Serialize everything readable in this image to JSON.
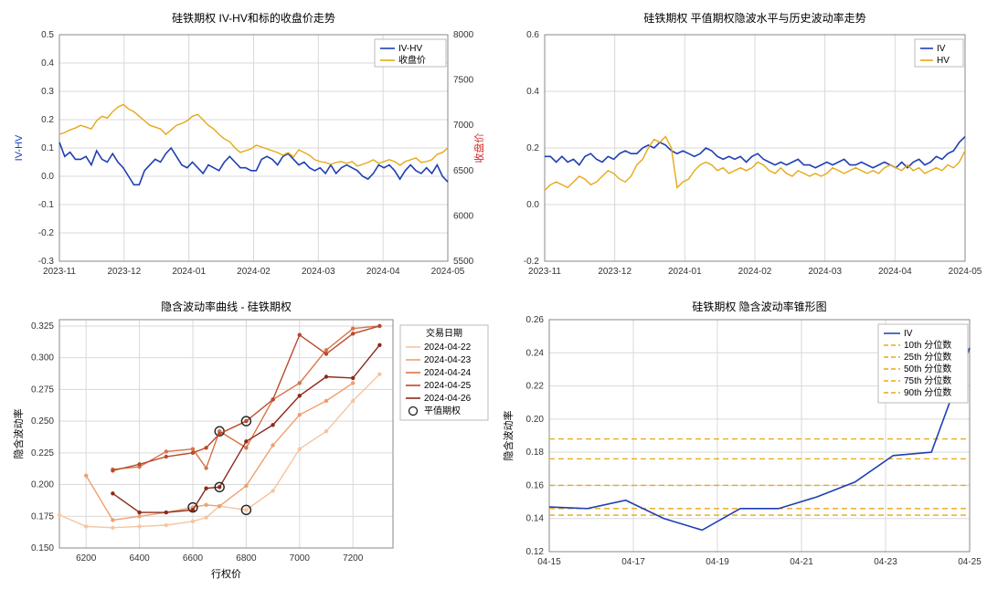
{
  "background_color": "#ffffff",
  "fonts": {
    "title_size": 12,
    "tick_size": 10,
    "legend_size": 10
  },
  "chart_a": {
    "type": "line",
    "title": "硅铁期权 IV-HV和标的收盘价走势",
    "ylabel_left": "IV-HV",
    "ylabel_right": "收盘价",
    "ylabel_left_color": "#1f3fb3",
    "ylabel_right_color": "#d62728",
    "x_ticks": [
      "2023-11",
      "2023-12",
      "2024-01",
      "2024-02",
      "2024-03",
      "2024-04",
      "2024-05"
    ],
    "y_left": {
      "min": -0.3,
      "max": 0.5,
      "step": 0.1
    },
    "y_right": {
      "min": 5500,
      "max": 8000,
      "step": 500,
      "color": "#d62728"
    },
    "grid_color": "#d9d9d9",
    "legend": [
      {
        "label": "IV-HV",
        "color": "#1f3fb3"
      },
      {
        "label": "收盘价",
        "color": "#e6a817"
      }
    ],
    "series": [
      {
        "name": "IV-HV",
        "color": "#1f3fb3",
        "width": 1.6,
        "axis": "left",
        "y": [
          0.12,
          0.07,
          0.085,
          0.06,
          0.06,
          0.07,
          0.04,
          0.09,
          0.06,
          0.05,
          0.08,
          0.05,
          0.03,
          0.0,
          -0.03,
          -0.03,
          0.02,
          0.04,
          0.06,
          0.05,
          0.08,
          0.1,
          0.07,
          0.04,
          0.03,
          0.05,
          0.03,
          0.01,
          0.04,
          0.03,
          0.02,
          0.05,
          0.07,
          0.05,
          0.03,
          0.03,
          0.02,
          0.02,
          0.06,
          0.07,
          0.06,
          0.04,
          0.07,
          0.08,
          0.06,
          0.04,
          0.05,
          0.03,
          0.02,
          0.03,
          0.01,
          0.04,
          0.01,
          0.03,
          0.04,
          0.03,
          0.02,
          0.0,
          -0.01,
          0.01,
          0.04,
          0.03,
          0.04,
          0.02,
          -0.01,
          0.02,
          0.04,
          0.02,
          0.01,
          0.03,
          0.01,
          0.04,
          0.0,
          -0.02
        ]
      },
      {
        "name": "收盘价",
        "color": "#e6a817",
        "width": 1.4,
        "axis": "right",
        "y": [
          6900,
          6920,
          6950,
          6970,
          7000,
          6980,
          6960,
          7050,
          7100,
          7080,
          7150,
          7200,
          7230,
          7180,
          7150,
          7100,
          7050,
          7000,
          6980,
          6960,
          6900,
          6950,
          7000,
          7020,
          7050,
          7100,
          7120,
          7060,
          7000,
          6960,
          6900,
          6850,
          6820,
          6750,
          6700,
          6720,
          6740,
          6780,
          6760,
          6740,
          6720,
          6700,
          6670,
          6700,
          6650,
          6730,
          6700,
          6670,
          6620,
          6600,
          6590,
          6570,
          6590,
          6600,
          6580,
          6600,
          6550,
          6570,
          6590,
          6620,
          6580,
          6600,
          6620,
          6600,
          6560,
          6600,
          6620,
          6640,
          6590,
          6600,
          6620,
          6680,
          6700,
          6750
        ]
      }
    ]
  },
  "chart_b": {
    "type": "line",
    "title": "硅铁期权 平值期权隐波水平与历史波动率走势",
    "x_ticks": [
      "2023-11",
      "2023-12",
      "2024-01",
      "2024-02",
      "2024-03",
      "2024-04",
      "2024-05"
    ],
    "y": {
      "min": -0.2,
      "max": 0.6,
      "step": 0.2
    },
    "grid_color": "#d9d9d9",
    "legend": [
      {
        "label": "IV",
        "color": "#1f3fb3"
      },
      {
        "label": "HV",
        "color": "#e6a817"
      }
    ],
    "series": [
      {
        "name": "IV",
        "color": "#1f3fb3",
        "width": 1.6,
        "y": [
          0.17,
          0.17,
          0.15,
          0.17,
          0.15,
          0.16,
          0.14,
          0.17,
          0.18,
          0.16,
          0.15,
          0.17,
          0.16,
          0.18,
          0.19,
          0.18,
          0.18,
          0.2,
          0.21,
          0.2,
          0.22,
          0.21,
          0.19,
          0.18,
          0.19,
          0.18,
          0.17,
          0.18,
          0.2,
          0.19,
          0.17,
          0.16,
          0.17,
          0.16,
          0.17,
          0.15,
          0.17,
          0.18,
          0.16,
          0.15,
          0.14,
          0.15,
          0.14,
          0.15,
          0.16,
          0.14,
          0.14,
          0.13,
          0.14,
          0.15,
          0.14,
          0.15,
          0.16,
          0.14,
          0.14,
          0.15,
          0.14,
          0.13,
          0.14,
          0.15,
          0.14,
          0.13,
          0.15,
          0.13,
          0.15,
          0.16,
          0.14,
          0.15,
          0.17,
          0.16,
          0.18,
          0.19,
          0.22,
          0.24
        ]
      },
      {
        "name": "HV",
        "color": "#e6a817",
        "width": 1.4,
        "y": [
          0.05,
          0.07,
          0.08,
          0.07,
          0.06,
          0.08,
          0.1,
          0.09,
          0.07,
          0.08,
          0.1,
          0.12,
          0.11,
          0.09,
          0.08,
          0.1,
          0.14,
          0.16,
          0.2,
          0.23,
          0.22,
          0.24,
          0.2,
          0.06,
          0.08,
          0.09,
          0.12,
          0.14,
          0.15,
          0.14,
          0.12,
          0.13,
          0.11,
          0.12,
          0.13,
          0.12,
          0.13,
          0.15,
          0.14,
          0.12,
          0.11,
          0.13,
          0.11,
          0.1,
          0.12,
          0.11,
          0.1,
          0.11,
          0.1,
          0.11,
          0.13,
          0.12,
          0.11,
          0.12,
          0.13,
          0.12,
          0.11,
          0.12,
          0.11,
          0.13,
          0.14,
          0.13,
          0.12,
          0.14,
          0.12,
          0.13,
          0.11,
          0.12,
          0.13,
          0.12,
          0.14,
          0.13,
          0.15,
          0.19
        ]
      }
    ]
  },
  "chart_c": {
    "type": "line",
    "title": "隐含波动率曲线 - 硅铁期权",
    "xlabel": "行权价",
    "ylabel": "隐含波动率",
    "x": {
      "ticks": [
        6200,
        6400,
        6600,
        6800,
        7000,
        7200
      ],
      "min": 6100,
      "max": 7350
    },
    "y": {
      "min": 0.15,
      "max": 0.33,
      "step": 0.025
    },
    "grid_color": "#d9d9d9",
    "legend_title": "交易日期",
    "atm_label": "平值期权",
    "legend": [
      {
        "label": "2024-04-22",
        "color": "#f5c5a0"
      },
      {
        "label": "2024-04-23",
        "color": "#eea06f"
      },
      {
        "label": "2024-04-24",
        "color": "#d6754a"
      },
      {
        "label": "2024-04-25",
        "color": "#b84a2e"
      },
      {
        "label": "2024-04-26",
        "color": "#8c2a1a"
      }
    ],
    "strikes": [
      6100,
      6200,
      6300,
      6400,
      6500,
      6600,
      6650,
      6700,
      6800,
      6900,
      7000,
      7100,
      7200,
      7300
    ],
    "atm": {
      "6100": false,
      "6200": false,
      "6300": false,
      "6400": false,
      "6500": false,
      "6600": true,
      "6650": false,
      "6700": true,
      "6800": true,
      "6900": false,
      "7000": false,
      "7100": false,
      "7200": false,
      "7300": false
    },
    "series": [
      {
        "name": "2024-04-22",
        "color": "#f5c5a0",
        "y": [
          0.176,
          0.167,
          0.166,
          0.167,
          0.168,
          0.171,
          0.174,
          0.183,
          0.18,
          0.195,
          0.228,
          0.242,
          0.266,
          0.287
        ],
        "atm_x": 6800,
        "atm_y": 0.18
      },
      {
        "name": "2024-04-23",
        "color": "#eea06f",
        "y": [
          null,
          0.207,
          0.172,
          0.175,
          0.178,
          0.182,
          0.184,
          0.183,
          0.199,
          0.231,
          0.255,
          0.266,
          0.28,
          null
        ],
        "atm_x": 6600,
        "atm_y": 0.182
      },
      {
        "name": "2024-04-24",
        "color": "#d6754a",
        "y": [
          null,
          null,
          0.212,
          0.214,
          0.226,
          0.228,
          0.213,
          0.242,
          0.229,
          0.267,
          0.28,
          0.306,
          0.323,
          0.325
        ],
        "atm_x": 6700,
        "atm_y": 0.242
      },
      {
        "name": "2024-04-25",
        "color": "#b84a2e",
        "y": [
          null,
          null,
          0.211,
          0.216,
          0.222,
          0.225,
          0.229,
          0.24,
          0.25,
          0.267,
          0.318,
          0.303,
          0.319,
          0.325
        ],
        "atm_x": 6800,
        "atm_y": 0.25
      },
      {
        "name": "2024-04-26",
        "color": "#8c2a1a",
        "y": [
          null,
          null,
          0.193,
          0.178,
          0.178,
          0.18,
          0.197,
          0.198,
          0.234,
          0.247,
          0.27,
          0.285,
          0.284,
          0.31
        ],
        "atm_x": 6700,
        "atm_y": 0.198
      }
    ]
  },
  "chart_d": {
    "type": "line",
    "title": "硅铁期权 隐含波动率锥形图",
    "ylabel": "隐含波动率",
    "x_ticks": [
      "04-15",
      "04-17",
      "04-19",
      "04-21",
      "04-23",
      "04-25"
    ],
    "x": {
      "min": 0,
      "max": 11
    },
    "y": {
      "min": 0.12,
      "max": 0.26,
      "step": 0.02
    },
    "grid_color": "#d9d9d9",
    "legend": [
      {
        "label": "IV",
        "color": "#1f3fb3",
        "dash": "solid"
      },
      {
        "label": "10th 分位数",
        "color": "#e6a817",
        "dash": "dash"
      },
      {
        "label": "25th 分位数",
        "color": "#e6a817",
        "dash": "dash"
      },
      {
        "label": "50th 分位数",
        "color": "#e6a817",
        "dash": "dash"
      },
      {
        "label": "75th 分位数",
        "color": "#e6a817",
        "dash": "dash"
      },
      {
        "label": "90th 分位数",
        "color": "#e6a817",
        "dash": "dash"
      }
    ],
    "percentile_lines": [
      {
        "name": "10th",
        "value": 0.142,
        "color": "#e6a817"
      },
      {
        "name": "25th",
        "value": 0.146,
        "color": "#e6a817"
      },
      {
        "name": "50th",
        "value": 0.16,
        "color": "#e6a817"
      },
      {
        "name": "75th",
        "value": 0.176,
        "color": "#e6a817"
      },
      {
        "name": "90th",
        "value": 0.188,
        "color": "#e6a817"
      }
    ],
    "iv": {
      "color": "#1f3fb3",
      "width": 1.6,
      "x": [
        0,
        1,
        2,
        3,
        4,
        5,
        6,
        7,
        8,
        9,
        10,
        11
      ],
      "y": [
        0.147,
        0.146,
        0.151,
        0.14,
        0.133,
        0.146,
        0.146,
        0.153,
        0.162,
        0.178,
        0.18,
        0.243
      ]
    }
  }
}
